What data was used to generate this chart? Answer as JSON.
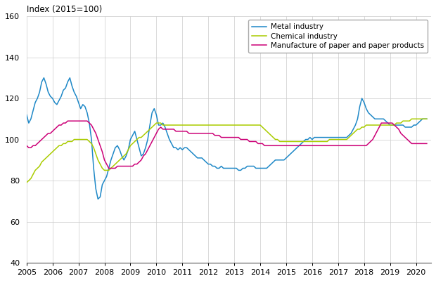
{
  "ylabel": "Index (2015=100)",
  "ylim": [
    40,
    160
  ],
  "yticks": [
    40,
    60,
    80,
    100,
    120,
    140,
    160
  ],
  "xlim_start": 2005.0,
  "xlim_end": 2020.583,
  "xtick_years": [
    2005,
    2006,
    2007,
    2008,
    2009,
    2010,
    2011,
    2012,
    2013,
    2014,
    2015,
    2016,
    2017,
    2018,
    2019,
    2020
  ],
  "metal_color": "#1E88C7",
  "chemical_color": "#AACC00",
  "paper_color": "#CC0077",
  "legend_labels": [
    "Metal industry",
    "Chemical industry",
    "Manufacture of paper and paper products"
  ],
  "metal": [
    112,
    108,
    110,
    114,
    118,
    120,
    123,
    128,
    130,
    127,
    123,
    121,
    120,
    118,
    117,
    119,
    121,
    124,
    125,
    128,
    130,
    126,
    123,
    121,
    118,
    115,
    117,
    116,
    113,
    108,
    100,
    86,
    76,
    71,
    72,
    78,
    80,
    82,
    86,
    90,
    93,
    96,
    97,
    95,
    92,
    90,
    92,
    95,
    100,
    102,
    104,
    100,
    96,
    92,
    93,
    96,
    100,
    107,
    113,
    115,
    112,
    107,
    107,
    108,
    106,
    103,
    100,
    98,
    96,
    96,
    95,
    96,
    95,
    96,
    96,
    95,
    94,
    93,
    92,
    91,
    91,
    91,
    90,
    89,
    88,
    88,
    87,
    87,
    86,
    86,
    87,
    86,
    86,
    86,
    86,
    86,
    86,
    86,
    85,
    85,
    86,
    86,
    87,
    87,
    87,
    87,
    86,
    86,
    86,
    86,
    86,
    86,
    87,
    88,
    89,
    90,
    90,
    90,
    90,
    90,
    91,
    92,
    93,
    94,
    95,
    96,
    97,
    98,
    99,
    100,
    100,
    101,
    100,
    101,
    101,
    101,
    101,
    101,
    101,
    101,
    101,
    101,
    101,
    101,
    101,
    101,
    101,
    101,
    101,
    102,
    103,
    105,
    107,
    110,
    116,
    120,
    118,
    115,
    113,
    112,
    111,
    110,
    110,
    110,
    110,
    110,
    109,
    108,
    107,
    107,
    107,
    107,
    107,
    107,
    107,
    106,
    106,
    106,
    106,
    107,
    107,
    108,
    109,
    110,
    110,
    110
  ],
  "chemical": [
    79,
    80,
    81,
    83,
    85,
    86,
    87,
    89,
    90,
    91,
    92,
    93,
    94,
    95,
    96,
    97,
    97,
    98,
    98,
    99,
    99,
    99,
    100,
    100,
    100,
    100,
    100,
    100,
    100,
    99,
    98,
    96,
    93,
    90,
    88,
    86,
    85,
    85,
    85,
    86,
    87,
    88,
    89,
    90,
    91,
    92,
    93,
    95,
    97,
    98,
    99,
    100,
    101,
    101,
    102,
    103,
    104,
    105,
    106,
    107,
    108,
    108,
    108,
    107,
    107,
    107,
    107,
    107,
    107,
    107,
    107,
    107,
    107,
    107,
    107,
    107,
    107,
    107,
    107,
    107,
    107,
    107,
    107,
    107,
    107,
    107,
    107,
    107,
    107,
    107,
    107,
    107,
    107,
    107,
    107,
    107,
    107,
    107,
    107,
    107,
    107,
    107,
    107,
    107,
    107,
    107,
    107,
    107,
    107,
    106,
    105,
    104,
    103,
    102,
    101,
    100,
    100,
    99,
    99,
    99,
    99,
    99,
    99,
    99,
    99,
    99,
    99,
    99,
    99,
    99,
    99,
    99,
    99,
    99,
    99,
    99,
    99,
    99,
    99,
    99,
    100,
    100,
    100,
    100,
    100,
    100,
    100,
    100,
    100,
    101,
    102,
    103,
    104,
    105,
    105,
    106,
    106,
    107,
    107,
    107,
    107,
    107,
    107,
    107,
    107,
    107,
    107,
    107,
    107,
    107,
    107,
    108,
    108,
    108,
    109,
    109,
    109,
    109,
    110,
    110,
    110,
    110,
    110,
    110,
    110,
    110
  ],
  "paper": [
    97,
    96,
    96,
    97,
    97,
    98,
    99,
    100,
    101,
    102,
    103,
    103,
    104,
    105,
    106,
    107,
    107,
    108,
    108,
    109,
    109,
    109,
    109,
    109,
    109,
    109,
    109,
    109,
    109,
    108,
    107,
    105,
    103,
    100,
    97,
    94,
    90,
    88,
    86,
    86,
    86,
    86,
    87,
    87,
    87,
    87,
    87,
    87,
    87,
    87,
    88,
    88,
    89,
    90,
    92,
    93,
    95,
    97,
    99,
    101,
    103,
    105,
    106,
    105,
    105,
    105,
    105,
    105,
    105,
    104,
    104,
    104,
    104,
    104,
    104,
    103,
    103,
    103,
    103,
    103,
    103,
    103,
    103,
    103,
    103,
    103,
    103,
    102,
    102,
    102,
    101,
    101,
    101,
    101,
    101,
    101,
    101,
    101,
    101,
    100,
    100,
    100,
    100,
    99,
    99,
    99,
    99,
    98,
    98,
    98,
    97,
    97,
    97,
    97,
    97,
    97,
    97,
    97,
    97,
    97,
    97,
    97,
    97,
    97,
    97,
    97,
    97,
    97,
    97,
    97,
    97,
    97,
    97,
    97,
    97,
    97,
    97,
    97,
    97,
    97,
    97,
    97,
    97,
    97,
    97,
    97,
    97,
    97,
    97,
    97,
    97,
    97,
    97,
    97,
    97,
    97,
    97,
    97,
    98,
    99,
    100,
    102,
    104,
    106,
    108,
    108,
    108,
    108,
    108,
    108,
    107,
    106,
    105,
    103,
    102,
    101,
    100,
    99,
    98,
    98,
    98,
    98,
    98,
    98,
    98,
    98
  ]
}
